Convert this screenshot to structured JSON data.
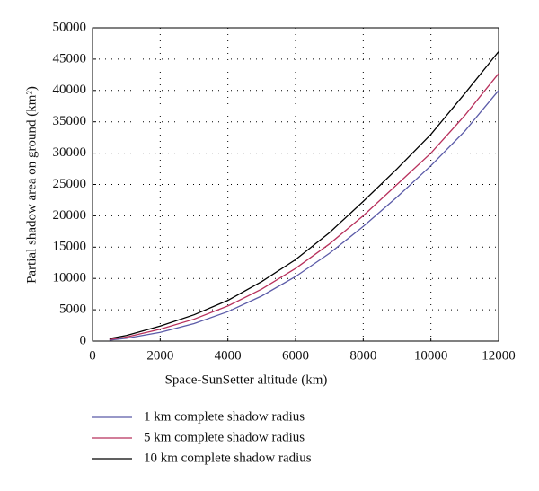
{
  "chart_data": {
    "type": "line",
    "x_label": "Space-SunSetter altitude (km)",
    "y_label": "Partial shadow area on ground (km²)",
    "x": [
      500,
      1000,
      2000,
      3000,
      4000,
      5000,
      6000,
      7000,
      8000,
      9000,
      10000,
      11000,
      12000
    ],
    "series": [
      {
        "name": "1 km complete shadow radius",
        "color": "#5b5ba8",
        "values": [
          150,
          450,
          1400,
          2800,
          4700,
          7200,
          10300,
          14000,
          18300,
          23000,
          28000,
          33500,
          40000
        ]
      },
      {
        "name": "5 km complete shadow radius",
        "color": "#b8305c",
        "values": [
          250,
          650,
          1900,
          3500,
          5600,
          8300,
          11600,
          15500,
          20000,
          25000,
          30000,
          36000,
          42700
        ]
      },
      {
        "name": "10 km complete shadow radius",
        "color": "#000000",
        "values": [
          400,
          900,
          2400,
          4200,
          6500,
          9500,
          13000,
          17300,
          22300,
          27500,
          33000,
          39500,
          46200
        ]
      }
    ],
    "xlim": [
      0,
      12000
    ],
    "xticks": [
      0,
      2000,
      4000,
      6000,
      8000,
      10000,
      12000
    ],
    "ylim": [
      0,
      50000
    ],
    "yticks": [
      0,
      5000,
      10000,
      15000,
      20000,
      25000,
      30000,
      35000,
      40000,
      45000,
      50000
    ],
    "grid": true
  }
}
